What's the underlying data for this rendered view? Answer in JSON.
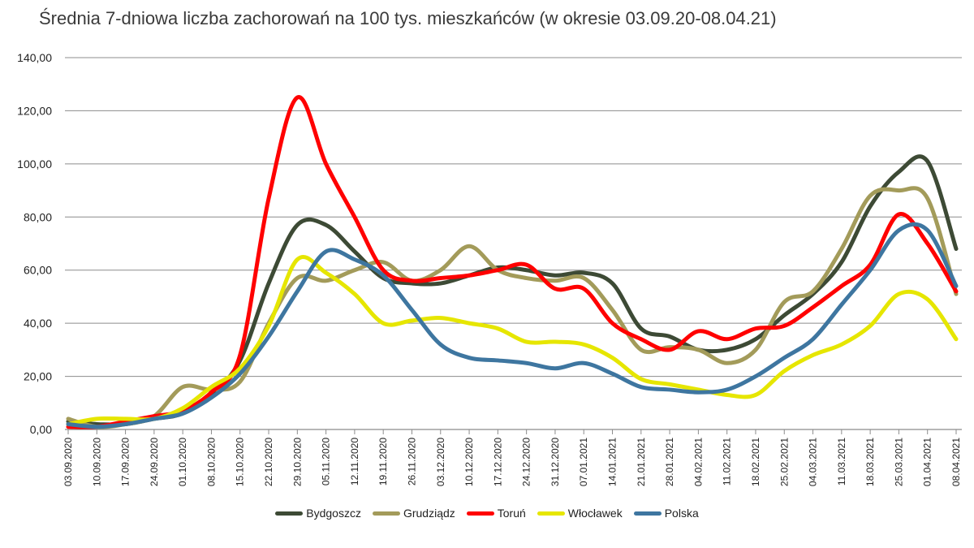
{
  "chart_data": {
    "type": "line",
    "title": "Średnia 7-dniowa liczba zachorowań na 100 tys. mieszkańców (w okresie 03.09.20-08.04.21)",
    "xlabel": "",
    "ylabel": "",
    "ylim": [
      0,
      140
    ],
    "yticks": [
      "0,00",
      "20,00",
      "40,00",
      "60,00",
      "80,00",
      "100,00",
      "120,00",
      "140,00"
    ],
    "ytick_values": [
      0,
      20,
      40,
      60,
      80,
      100,
      120,
      140
    ],
    "grid": true,
    "legend_position": "bottom",
    "categories": [
      "03.09.2020",
      "10.09.2020",
      "17.09.2020",
      "24.09.2020",
      "01.10.2020",
      "08.10.2020",
      "15.10.2020",
      "22.10.2020",
      "29.10.2020",
      "05.11.2020",
      "12.11.2020",
      "19.11.2020",
      "26.11.2020",
      "03.12.2020",
      "10.12.2020",
      "17.12.2020",
      "24.12.2020",
      "31.12.2020",
      "07.01.2021",
      "14.01.2021",
      "21.01.2021",
      "28.01.2021",
      "04.02.2021",
      "11.02.2021",
      "18.02.2021",
      "25.02.2021",
      "04.03.2021",
      "11.03.2021",
      "18.03.2021",
      "25.03.2021",
      "01.04.2021",
      "08.04.2021"
    ],
    "series": [
      {
        "name": "Bydgoszcz",
        "color": "#3d4a35",
        "values": [
          3,
          2,
          2,
          4,
          6,
          13,
          26,
          55,
          77,
          77,
          67,
          57,
          55,
          55,
          58,
          61,
          60,
          58,
          59,
          55,
          38,
          35,
          30,
          30,
          34,
          43,
          51,
          63,
          84,
          97,
          101,
          68
        ]
      },
      {
        "name": "Grudziądz",
        "color": "#a39b5a",
        "values": [
          4,
          1,
          2,
          5,
          16,
          15,
          18,
          40,
          57,
          56,
          60,
          63,
          56,
          60,
          69,
          60,
          57,
          56,
          57,
          45,
          30,
          31,
          30,
          25,
          30,
          48,
          52,
          68,
          88,
          90,
          87,
          51
        ]
      },
      {
        "name": "Toruń",
        "color": "#ff0000",
        "values": [
          1,
          1,
          3,
          5,
          7,
          14,
          28,
          87,
          125,
          100,
          80,
          60,
          56,
          57,
          58,
          60,
          62,
          53,
          53,
          40,
          34,
          30,
          37,
          34,
          38,
          39,
          46,
          54,
          62,
          81,
          70,
          52
        ]
      },
      {
        "name": "Włocławek",
        "color": "#e6e600",
        "values": [
          2,
          4,
          4,
          4,
          8,
          16,
          23,
          39,
          64,
          59,
          51,
          40,
          41,
          42,
          40,
          38,
          33,
          33,
          32,
          27,
          19,
          17,
          15,
          13,
          13,
          22,
          28,
          32,
          39,
          51,
          49,
          34
        ]
      },
      {
        "name": "Polska",
        "color": "#3e76a0",
        "values": [
          2,
          1,
          2,
          4,
          6,
          12,
          21,
          35,
          52,
          67,
          64,
          58,
          45,
          32,
          27,
          26,
          25,
          23,
          25,
          21,
          16,
          15,
          14,
          15,
          20,
          27,
          34,
          47,
          60,
          75,
          75,
          54
        ]
      }
    ]
  }
}
